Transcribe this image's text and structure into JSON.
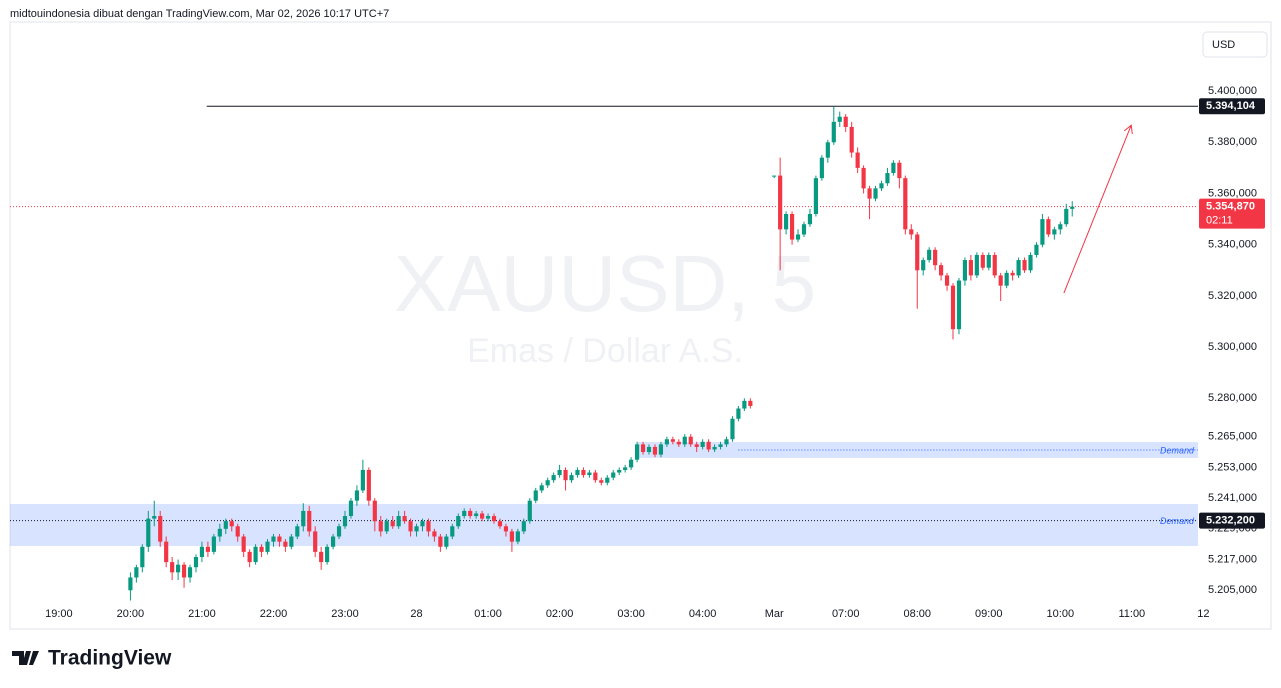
{
  "chart_data": {
    "type": "candlestick",
    "header": "midtouindonesia dibuat dengan TradingView.com, Mar 02, 2026 10:17 UTC+7",
    "currency": "USD",
    "watermark": "XAUUSD, 5",
    "watermark_subtitle": "Emas / Dollar A.S.",
    "footer": "TradingView",
    "up_color": "#089981",
    "down_color": "#f23645",
    "xlim": [
      -8.2,
      191.1
    ],
    "xticks": [
      {
        "value": 0,
        "label": "19:00"
      },
      {
        "value": 12,
        "label": "20:00"
      },
      {
        "value": 24,
        "label": "21:00"
      },
      {
        "value": 36,
        "label": "22:00"
      },
      {
        "value": 48,
        "label": "23:00"
      },
      {
        "value": 60,
        "label": "28"
      },
      {
        "value": 72,
        "label": "01:00"
      },
      {
        "value": 84,
        "label": "02:00"
      },
      {
        "value": 96,
        "label": "03:00"
      },
      {
        "value": 108,
        "label": "04:00"
      },
      {
        "value": 120,
        "label": "Mar"
      },
      {
        "value": 132,
        "label": "07:00"
      },
      {
        "value": 144,
        "label": "08:00"
      },
      {
        "value": 156,
        "label": "09:00"
      },
      {
        "value": 168,
        "label": "10:00"
      },
      {
        "value": 180,
        "label": "11:00"
      },
      {
        "value": 192,
        "label": "12"
      }
    ],
    "ylim": [
      5201.2,
      5427.0
    ],
    "yticks": [
      {
        "value": 5400,
        "label": "5.400,000"
      },
      {
        "value": 5380,
        "label": "5.380,000"
      },
      {
        "value": 5360,
        "label": "5.360,000"
      },
      {
        "value": 5340,
        "label": "5.340,000"
      },
      {
        "value": 5320,
        "label": "5.320,000"
      },
      {
        "value": 5300,
        "label": "5.300,000"
      },
      {
        "value": 5280,
        "label": "5.280,000"
      },
      {
        "value": 5265,
        "label": "5.265,000"
      },
      {
        "value": 5253,
        "label": "5.253,000"
      },
      {
        "value": 5241,
        "label": "5.241,000"
      },
      {
        "value": 5229,
        "label": "5.229,000"
      },
      {
        "value": 5217,
        "label": "5.217,000"
      },
      {
        "value": 5205,
        "label": "5.205,000"
      }
    ],
    "candles": [
      [
        12,
        5205,
        5212,
        5201,
        5210
      ],
      [
        13,
        5210,
        5215,
        5208,
        5214
      ],
      [
        14,
        5214,
        5223,
        5212,
        5222
      ],
      [
        15,
        5222,
        5236,
        5220,
        5233
      ],
      [
        16,
        5233,
        5240,
        5230,
        5234
      ],
      [
        17,
        5234,
        5236,
        5222,
        5224
      ],
      [
        18,
        5224,
        5226,
        5214,
        5216
      ],
      [
        19,
        5216,
        5218,
        5209,
        5212
      ],
      [
        20,
        5212,
        5217,
        5209,
        5215
      ],
      [
        21,
        5215,
        5216,
        5206,
        5210
      ],
      [
        22,
        5210,
        5215,
        5208,
        5214
      ],
      [
        23,
        5214,
        5219,
        5212,
        5218
      ],
      [
        24,
        5218,
        5224,
        5216,
        5222
      ],
      [
        25,
        5222,
        5224,
        5218,
        5220
      ],
      [
        26,
        5220,
        5227,
        5219,
        5226
      ],
      [
        27,
        5226,
        5231,
        5224,
        5229
      ],
      [
        28,
        5229,
        5233,
        5227,
        5232
      ],
      [
        29,
        5232,
        5233,
        5228,
        5230
      ],
      [
        30,
        5230,
        5231,
        5224,
        5226
      ],
      [
        31,
        5226,
        5227,
        5218,
        5220
      ],
      [
        32,
        5220,
        5221,
        5214,
        5216
      ],
      [
        33,
        5216,
        5223,
        5215,
        5222
      ],
      [
        34,
        5222,
        5223,
        5218,
        5220
      ],
      [
        35,
        5220,
        5225,
        5219,
        5224
      ],
      [
        36,
        5224,
        5227,
        5222,
        5226
      ],
      [
        37,
        5226,
        5227,
        5222,
        5224
      ],
      [
        38,
        5224,
        5225,
        5220,
        5222
      ],
      [
        39,
        5222,
        5227,
        5221,
        5226
      ],
      [
        40,
        5226,
        5231,
        5225,
        5230
      ],
      [
        41,
        5230,
        5239,
        5228,
        5236
      ],
      [
        42,
        5236,
        5238,
        5226,
        5228
      ],
      [
        43,
        5228,
        5230,
        5218,
        5220
      ],
      [
        44,
        5220,
        5222,
        5213,
        5216
      ],
      [
        45,
        5216,
        5223,
        5215,
        5222
      ],
      [
        46,
        5222,
        5227,
        5221,
        5226
      ],
      [
        47,
        5226,
        5231,
        5225,
        5230
      ],
      [
        48,
        5230,
        5236,
        5229,
        5234
      ],
      [
        49,
        5234,
        5241,
        5233,
        5240
      ],
      [
        50,
        5240,
        5246,
        5238,
        5244
      ],
      [
        51,
        5244,
        5256,
        5243,
        5252
      ],
      [
        52,
        5252,
        5253,
        5238,
        5240
      ],
      [
        53,
        5240,
        5241,
        5228,
        5232
      ],
      [
        54,
        5232,
        5234,
        5226,
        5228
      ],
      [
        55,
        5228,
        5233,
        5227,
        5232
      ],
      [
        56,
        5232,
        5234,
        5229,
        5230
      ],
      [
        57,
        5230,
        5236,
        5229,
        5234
      ],
      [
        58,
        5234,
        5236,
        5231,
        5232
      ],
      [
        59,
        5232,
        5233,
        5226,
        5228
      ],
      [
        60,
        5228,
        5231,
        5226,
        5230
      ],
      [
        61,
        5230,
        5233,
        5228,
        5232
      ],
      [
        62,
        5232,
        5233,
        5226,
        5228
      ],
      [
        63,
        5228,
        5229,
        5224,
        5226
      ],
      [
        64,
        5226,
        5227,
        5220,
        5222
      ],
      [
        65,
        5222,
        5227,
        5221,
        5226
      ],
      [
        66,
        5226,
        5231,
        5225,
        5230
      ],
      [
        67,
        5230,
        5235,
        5229,
        5234
      ],
      [
        68,
        5234,
        5237,
        5233,
        5236
      ],
      [
        69,
        5236,
        5237,
        5233,
        5234
      ],
      [
        70,
        5234,
        5236,
        5233,
        5235
      ],
      [
        71,
        5235,
        5236,
        5232,
        5233
      ],
      [
        72,
        5233,
        5235,
        5232,
        5234
      ],
      [
        73,
        5234,
        5235,
        5231,
        5232
      ],
      [
        74,
        5232,
        5233,
        5229,
        5230
      ],
      [
        75,
        5230,
        5231,
        5226,
        5228
      ],
      [
        76,
        5228,
        5229,
        5220,
        5224
      ],
      [
        77,
        5224,
        5229,
        5223,
        5228
      ],
      [
        78,
        5228,
        5233,
        5227,
        5232
      ],
      [
        79,
        5232,
        5241,
        5231,
        5240
      ],
      [
        80,
        5240,
        5245,
        5239,
        5244
      ],
      [
        81,
        5244,
        5247,
        5243,
        5246
      ],
      [
        82,
        5246,
        5249,
        5245,
        5248
      ],
      [
        83,
        5248,
        5251,
        5247,
        5250
      ],
      [
        84,
        5250,
        5254,
        5249,
        5252
      ],
      [
        85,
        5252,
        5253,
        5244,
        5248
      ],
      [
        86,
        5248,
        5251,
        5247,
        5250
      ],
      [
        87,
        5250,
        5253,
        5249,
        5252
      ],
      [
        88,
        5252,
        5253,
        5249,
        5250
      ],
      [
        89,
        5250,
        5252,
        5249,
        5251
      ],
      [
        90,
        5251,
        5252,
        5247,
        5248
      ],
      [
        91,
        5248,
        5249,
        5246,
        5247
      ],
      [
        92,
        5247,
        5250,
        5246,
        5249
      ],
      [
        93,
        5249,
        5252,
        5248,
        5251
      ],
      [
        94,
        5251,
        5253,
        5250,
        5252
      ],
      [
        95,
        5252,
        5254,
        5251,
        5253
      ],
      [
        96,
        5253,
        5257,
        5252,
        5256
      ],
      [
        97,
        5256,
        5263,
        5255,
        5262
      ],
      [
        98,
        5262,
        5263,
        5258,
        5259
      ],
      [
        99,
        5259,
        5262,
        5258,
        5261
      ],
      [
        100,
        5261,
        5262,
        5257,
        5258
      ],
      [
        101,
        5258,
        5263,
        5257,
        5262
      ],
      [
        102,
        5262,
        5265,
        5261,
        5264
      ],
      [
        103,
        5264,
        5265,
        5262,
        5263
      ],
      [
        104,
        5263,
        5264,
        5261,
        5262
      ],
      [
        105,
        5262,
        5266,
        5261,
        5265
      ],
      [
        106,
        5265,
        5266,
        5261,
        5262
      ],
      [
        107,
        5262,
        5263,
        5259,
        5261
      ],
      [
        108,
        5261,
        5264,
        5260,
        5263
      ],
      [
        109,
        5263,
        5264,
        5259,
        5260
      ],
      [
        110,
        5260,
        5262,
        5259,
        5261
      ],
      [
        111,
        5261,
        5263,
        5260,
        5262
      ],
      [
        112,
        5262,
        5265,
        5261,
        5264
      ],
      [
        113,
        5264,
        5273,
        5263,
        5272
      ],
      [
        114,
        5272,
        5277,
        5271,
        5276
      ],
      [
        115,
        5276,
        5280,
        5275,
        5279
      ],
      [
        116,
        5279,
        5280,
        5276,
        5277
      ],
      [
        120,
        5367,
        5367,
        5366,
        5367
      ],
      [
        121,
        5367,
        5374,
        5330,
        5346
      ],
      [
        122,
        5346,
        5353,
        5344,
        5352
      ],
      [
        123,
        5352,
        5353,
        5340,
        5342
      ],
      [
        124,
        5342,
        5346,
        5341,
        5344
      ],
      [
        125,
        5344,
        5349,
        5343,
        5348
      ],
      [
        126,
        5348,
        5354,
        5347,
        5352
      ],
      [
        127,
        5352,
        5367,
        5351,
        5366
      ],
      [
        128,
        5366,
        5375,
        5365,
        5374
      ],
      [
        129,
        5374,
        5381,
        5372,
        5380
      ],
      [
        130,
        5380,
        5394,
        5379,
        5388
      ],
      [
        131,
        5388,
        5392,
        5386,
        5390
      ],
      [
        132,
        5390,
        5391,
        5384,
        5386
      ],
      [
        133,
        5386,
        5388,
        5374,
        5376
      ],
      [
        134,
        5376,
        5378,
        5368,
        5370
      ],
      [
        135,
        5370,
        5371,
        5360,
        5362
      ],
      [
        136,
        5362,
        5363,
        5350,
        5358
      ],
      [
        137,
        5358,
        5363,
        5357,
        5362
      ],
      [
        138,
        5362,
        5365,
        5361,
        5364
      ],
      [
        139,
        5364,
        5370,
        5363,
        5368
      ],
      [
        140,
        5368,
        5373,
        5367,
        5372
      ],
      [
        141,
        5372,
        5373,
        5362,
        5366
      ],
      [
        142,
        5366,
        5367,
        5344,
        5346
      ],
      [
        143,
        5346,
        5348,
        5342,
        5344
      ],
      [
        144,
        5344,
        5345,
        5315,
        5330
      ],
      [
        145,
        5330,
        5335,
        5328,
        5334
      ],
      [
        146,
        5334,
        5339,
        5333,
        5338
      ],
      [
        147,
        5338,
        5339,
        5330,
        5332
      ],
      [
        148,
        5332,
        5333,
        5326,
        5328
      ],
      [
        149,
        5328,
        5329,
        5322,
        5324
      ],
      [
        150,
        5324,
        5325,
        5303,
        5307
      ],
      [
        151,
        5307,
        5327,
        5305,
        5326
      ],
      [
        152,
        5326,
        5335,
        5324,
        5334
      ],
      [
        153,
        5334,
        5336,
        5326,
        5328
      ],
      [
        154,
        5328,
        5337,
        5327,
        5336
      ],
      [
        155,
        5336,
        5337,
        5330,
        5331
      ],
      [
        156,
        5331,
        5337,
        5330,
        5336
      ],
      [
        157,
        5336,
        5337,
        5327,
        5328
      ],
      [
        158,
        5328,
        5329,
        5318,
        5324
      ],
      [
        159,
        5324,
        5330,
        5323,
        5329
      ],
      [
        160,
        5329,
        5330,
        5326,
        5328
      ],
      [
        161,
        5328,
        5335,
        5327,
        5334
      ],
      [
        162,
        5334,
        5335,
        5329,
        5330
      ],
      [
        163,
        5330,
        5337,
        5329,
        5336
      ],
      [
        164,
        5336,
        5341,
        5335,
        5340
      ],
      [
        165,
        5340,
        5352,
        5339,
        5350
      ],
      [
        166,
        5350,
        5351,
        5343,
        5344
      ],
      [
        167,
        5344,
        5347,
        5342,
        5346
      ],
      [
        168,
        5346,
        5349,
        5344,
        5348
      ],
      [
        169,
        5348,
        5356,
        5347,
        5354
      ],
      [
        170,
        5354,
        5357,
        5351,
        5354.87
      ]
    ],
    "hline": {
      "value": 5394.104,
      "label": "5.394,104",
      "start": 24.8
    },
    "last_price": {
      "value": 5354.87,
      "label": "5.354,870",
      "countdown": "02:11"
    },
    "zones": [
      {
        "label": "Demand",
        "top": 5262.9,
        "bottom": 5256.7,
        "start": 97,
        "line": 5259.8,
        "line_start": 114
      },
      {
        "label": "Demand",
        "top": 5238.7,
        "bottom": 5222.3,
        "start": -8.2,
        "line": 5232.2,
        "line_label": "5.232,200",
        "line_start": -8.2
      }
    ],
    "arrow": {
      "from": [
        168.6,
        5321.1
      ],
      "to": [
        179.9,
        5386.7
      ]
    }
  }
}
